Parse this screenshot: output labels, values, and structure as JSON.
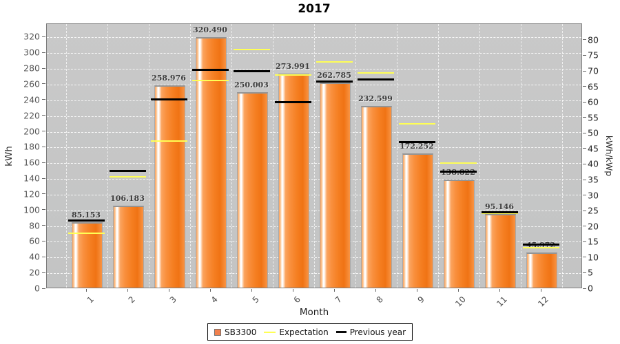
{
  "chart_data": {
    "type": "bar",
    "title": "2017",
    "xlabel": "Month",
    "ylabel_left": "kWh",
    "ylabel_right": "kWh/kWp",
    "categories": [
      "1",
      "2",
      "3",
      "4",
      "5",
      "6",
      "7",
      "8",
      "9",
      "10",
      "11",
      "12"
    ],
    "series": [
      {
        "name": "SB3300",
        "type": "bar",
        "color": "#f5832a",
        "values": [
          85.153,
          106.183,
          258.976,
          320.49,
          250.003,
          273.991,
          262.785,
          232.599,
          172.252,
          138.822,
          95.146,
          45.972
        ],
        "labels": [
          "85.153",
          "106.183",
          "258.976",
          "320.490",
          "250.003",
          "273.991",
          "262.785",
          "232.599",
          "172.252",
          "138.822",
          "95.146",
          "45.972"
        ]
      },
      {
        "name": "Expectation",
        "type": "line-marker",
        "color": "#ffff55",
        "values": [
          70,
          142,
          187,
          264,
          304,
          271,
          288,
          274,
          209,
          159,
          95,
          52
        ]
      },
      {
        "name": "Previous year",
        "type": "line-marker",
        "color": "#000000",
        "values": [
          86,
          149,
          240,
          278,
          276,
          237,
          263,
          266,
          186,
          148,
          97,
          56
        ]
      }
    ],
    "ylim_left": [
      0,
      337
    ],
    "yticks_left": [
      0,
      20,
      40,
      60,
      80,
      100,
      120,
      140,
      160,
      180,
      200,
      220,
      240,
      260,
      280,
      300,
      320
    ],
    "ylim_right": [
      0,
      85.3
    ],
    "yticks_right": [
      0,
      5,
      10,
      15,
      20,
      25,
      30,
      35,
      40,
      45,
      50,
      55,
      60,
      65,
      70,
      75,
      80
    ],
    "grid": "white-dashed-horizontal-and-category-boundaries",
    "plot_bg": "#c6c6c6",
    "legend_position": "bottom"
  }
}
